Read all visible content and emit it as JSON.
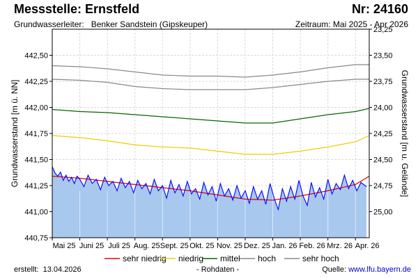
{
  "header": {
    "title": "Messstelle: Ernstfeld",
    "number": "Nr: 24160",
    "aquifer_label": "Grundwasserleiter:",
    "aquifer_value": "Benker Sandstein (Gipskeuper)",
    "period": "Zeitraum: Mai 2025 - Apr 2026"
  },
  "footer": {
    "created_label": "erstellt:",
    "created_date": "13.04.2026",
    "raw_data": "- Rohdaten -",
    "source_label": "Quelle:",
    "source_link": "www.lfu.bayern.de"
  },
  "colors": {
    "fill": "#a8c8ee",
    "measured": "#0000ff",
    "sehr_niedrig": "#e00000",
    "niedrig": "#eecc00",
    "mittel": "#006600",
    "hoch": "#888888",
    "sehr_hoch": "#888888",
    "grid": "#d8d8d8"
  },
  "chart_data": {
    "type": "line",
    "title": "Messstelle: Ernstfeld",
    "ylabel": "Grundwasserstand [m ü. NN]",
    "ylabel_right": "Grundwasserstand [m u. Gelände]",
    "ylim": [
      440.75,
      442.75
    ],
    "ylim_right": [
      25.25,
      23.25
    ],
    "yticks": [
      "440,75",
      "441,00",
      "441,25",
      "441,50",
      "441,75",
      "442,00",
      "442,25",
      "442,50"
    ],
    "yticks_right": [
      "23,25",
      "23,50",
      "23,75",
      "24,00",
      "24,25",
      "24,50",
      "24,75",
      "25,00"
    ],
    "grid": true,
    "x_months": [
      "Mai 25",
      "Juni 25",
      "Juli 25",
      "Aug. 25",
      "Sept. 25",
      "Okt. 25",
      "Nov. 25",
      "Dez. 25",
      "Jan. 26",
      "Feb. 26",
      "Mrz. 26",
      "Apr. 26"
    ],
    "x_month_values": [
      0,
      1,
      2,
      3,
      4,
      5,
      6,
      7,
      8,
      9,
      10,
      11
    ],
    "xlim": [
      0,
      11.5
    ],
    "measured_end": 11.4,
    "series": [
      {
        "name": "sehr niedrig",
        "key": "sehr_niedrig",
        "x": [
          0,
          1,
          2,
          3,
          4,
          5,
          6,
          7,
          8,
          9,
          10,
          11,
          11.5
        ],
        "values": [
          441.34,
          441.32,
          441.29,
          441.26,
          441.23,
          441.2,
          441.16,
          441.12,
          441.11,
          441.15,
          441.2,
          441.26,
          441.34
        ]
      },
      {
        "name": "niedrig",
        "key": "niedrig",
        "x": [
          0,
          1,
          2,
          3,
          4,
          5,
          6,
          7,
          8,
          9,
          10,
          11,
          11.5
        ],
        "values": [
          441.73,
          441.71,
          441.68,
          441.64,
          441.62,
          441.61,
          441.58,
          441.55,
          441.55,
          441.58,
          441.62,
          441.67,
          441.73
        ]
      },
      {
        "name": "mittel",
        "key": "mittel",
        "x": [
          0,
          1,
          2,
          3,
          4,
          5,
          6,
          7,
          8,
          9,
          10,
          11,
          11.5
        ],
        "values": [
          441.98,
          441.96,
          441.95,
          441.93,
          441.91,
          441.89,
          441.87,
          441.85,
          441.85,
          441.89,
          441.93,
          441.96,
          441.99
        ]
      },
      {
        "name": "hoch",
        "key": "hoch",
        "x": [
          0,
          1,
          2,
          3,
          4,
          5,
          6,
          7,
          8,
          9,
          10,
          11,
          11.5
        ],
        "values": [
          442.27,
          442.26,
          442.24,
          442.2,
          442.18,
          442.17,
          442.17,
          442.17,
          442.19,
          442.22,
          442.25,
          442.27,
          442.27
        ]
      },
      {
        "name": "sehr hoch",
        "key": "sehr_hoch",
        "x": [
          0,
          1,
          2,
          3,
          4,
          5,
          6,
          7,
          8,
          9,
          10,
          11,
          11.5
        ],
        "values": [
          442.4,
          442.39,
          442.37,
          442.34,
          442.31,
          442.3,
          442.3,
          442.29,
          442.31,
          442.34,
          442.38,
          442.41,
          442.41
        ]
      },
      {
        "name": "Grundwasserstand",
        "key": "measured",
        "x": [
          0,
          0.1,
          0.2,
          0.3,
          0.4,
          0.5,
          0.6,
          0.7,
          0.8,
          0.9,
          1.0,
          1.15,
          1.3,
          1.45,
          1.6,
          1.75,
          1.9,
          2.05,
          2.2,
          2.35,
          2.5,
          2.65,
          2.8,
          2.95,
          3.1,
          3.25,
          3.4,
          3.55,
          3.7,
          3.85,
          4.0,
          4.15,
          4.3,
          4.45,
          4.6,
          4.75,
          4.9,
          5.05,
          5.2,
          5.35,
          5.5,
          5.65,
          5.8,
          5.95,
          6.1,
          6.25,
          6.4,
          6.55,
          6.7,
          6.85,
          7.0,
          7.15,
          7.3,
          7.45,
          7.6,
          7.75,
          7.9,
          8.05,
          8.2,
          8.35,
          8.5,
          8.65,
          8.8,
          8.95,
          9.1,
          9.25,
          9.4,
          9.55,
          9.7,
          9.85,
          10.0,
          10.15,
          10.3,
          10.45,
          10.6,
          10.75,
          10.9,
          11.05,
          11.2,
          11.4
        ],
        "values": [
          441.43,
          441.37,
          441.34,
          441.38,
          441.3,
          441.35,
          441.29,
          441.33,
          441.27,
          441.34,
          441.31,
          441.24,
          441.35,
          441.27,
          441.31,
          441.21,
          441.33,
          441.25,
          441.29,
          441.2,
          441.32,
          441.23,
          441.29,
          441.18,
          441.3,
          441.22,
          441.27,
          441.17,
          441.31,
          441.2,
          441.25,
          441.13,
          441.3,
          441.18,
          441.26,
          441.15,
          441.29,
          441.17,
          441.22,
          441.12,
          441.28,
          441.16,
          441.24,
          441.1,
          441.27,
          441.15,
          441.22,
          441.11,
          441.25,
          441.13,
          441.2,
          441.08,
          441.24,
          441.12,
          441.2,
          441.07,
          441.27,
          441.13,
          441.02,
          441.22,
          441.1,
          441.24,
          441.12,
          441.3,
          441.15,
          441.06,
          441.28,
          441.14,
          441.23,
          441.12,
          441.31,
          441.17,
          441.27,
          441.21,
          441.35,
          441.22,
          441.3,
          441.2,
          441.28,
          441.24
        ]
      }
    ],
    "legend": [
      {
        "label": "sehr niedrig",
        "key": "sehr_niedrig"
      },
      {
        "label": "niedrig",
        "key": "niedrig"
      },
      {
        "label": "mittel",
        "key": "mittel"
      },
      {
        "label": "hoch",
        "key": "hoch"
      },
      {
        "label": "sehr hoch",
        "key": "sehr_hoch"
      }
    ]
  }
}
